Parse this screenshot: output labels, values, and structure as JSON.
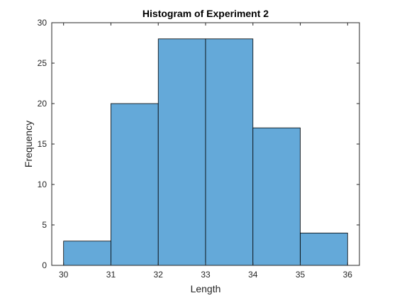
{
  "chart_data": {
    "type": "bar",
    "title": "Histogram of Experiment 2",
    "xlabel": "Length",
    "ylabel": "Frequency",
    "bin_edges": [
      30,
      31,
      32,
      33,
      34,
      35,
      36
    ],
    "values": [
      3,
      20,
      28,
      28,
      17,
      4
    ],
    "xlim": [
      29.75,
      36.25
    ],
    "ylim": [
      0,
      30
    ],
    "xticks": [
      30,
      31,
      32,
      33,
      34,
      35,
      36
    ],
    "yticks": [
      0,
      5,
      10,
      15,
      20,
      25,
      30
    ],
    "bar_color": "#64a9d9",
    "edge_color": "#000000",
    "grid": false,
    "box": true
  }
}
